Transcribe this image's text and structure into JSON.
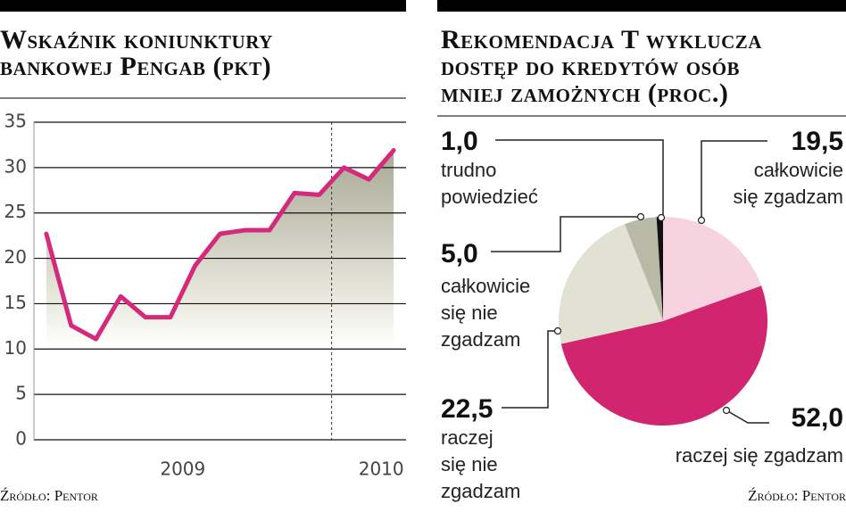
{
  "chart_data": [
    {
      "type": "line",
      "title": "Wskaźnik koniunktury\nbankowej Pengab (pkt)",
      "source": "Źródło: Pentor",
      "categories": [
        null,
        null,
        null,
        null,
        null,
        "2009",
        null,
        null,
        null,
        null,
        null,
        null,
        null,
        "2010",
        null
      ],
      "values": [
        22.7,
        12.6,
        11.1,
        15.8,
        13.5,
        13.5,
        19.2,
        22.7,
        23.1,
        23.1,
        27.2,
        27.0,
        30.0,
        28.7,
        31.9
      ],
      "color": "#d42a7c",
      "ylim": [
        0,
        35
      ],
      "yticks": [
        0,
        5,
        10,
        15,
        20,
        25,
        30,
        35
      ],
      "grid": true
    },
    {
      "type": "pie",
      "title": "Rekomendacja T wyklucza\ndostęp do kredytów osób\nmniej zamożnych (proc.)",
      "source": "Źródło: Pentor",
      "categories": [
        "całkowicie\nsię zgadzam",
        "raczej się zgadzam",
        "raczej\nsię nie\nzgadzam",
        "całkowicie\nsię nie\nzgadzam",
        "trudno\npowiedzieć"
      ],
      "values": [
        19.5,
        52.0,
        22.5,
        5.0,
        1.0
      ],
      "value_labels": [
        "19,5",
        "52,0",
        "22,5",
        "5,0",
        "1,0"
      ],
      "colors": [
        "#f6d3de",
        "#d1256f",
        "#e1e1d4",
        "#b9b9a8",
        "#111111"
      ]
    }
  ]
}
